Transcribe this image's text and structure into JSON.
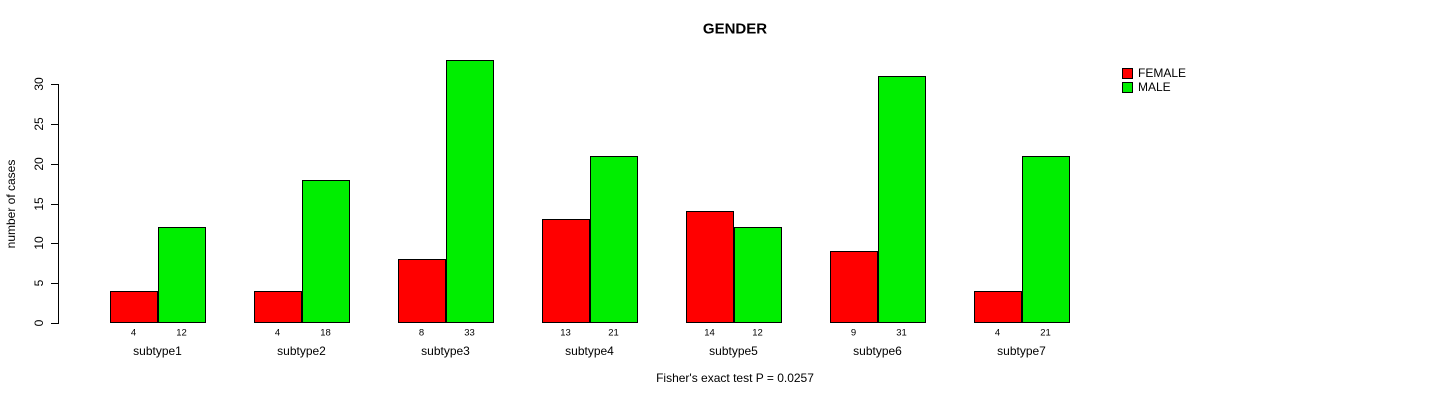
{
  "page": {
    "background": "#FFFFFF",
    "text_color": "#000000"
  },
  "chart_data": {
    "type": "bar",
    "title": "GENDER",
    "ylabel": "number of cases",
    "xlabel": "",
    "categories": [
      "subtype1",
      "subtype2",
      "subtype3",
      "subtype4",
      "subtype5",
      "subtype6",
      "subtype7"
    ],
    "series": [
      {
        "name": "FEMALE",
        "color": "#FF0000",
        "values": [
          4,
          4,
          8,
          13,
          14,
          9,
          4
        ]
      },
      {
        "name": "MALE",
        "color": "#00EE00",
        "values": [
          12,
          18,
          33,
          21,
          12,
          31,
          21
        ]
      }
    ],
    "show_values_under_bars": true,
    "yticks": [
      0,
      5,
      10,
      15,
      20,
      25,
      30
    ],
    "ylim": [
      0,
      33
    ],
    "grid": false,
    "legend": {
      "position": "top-right",
      "entries": [
        "FEMALE",
        "MALE"
      ]
    },
    "annotation": "Fisher's exact test P = 0.0257"
  }
}
